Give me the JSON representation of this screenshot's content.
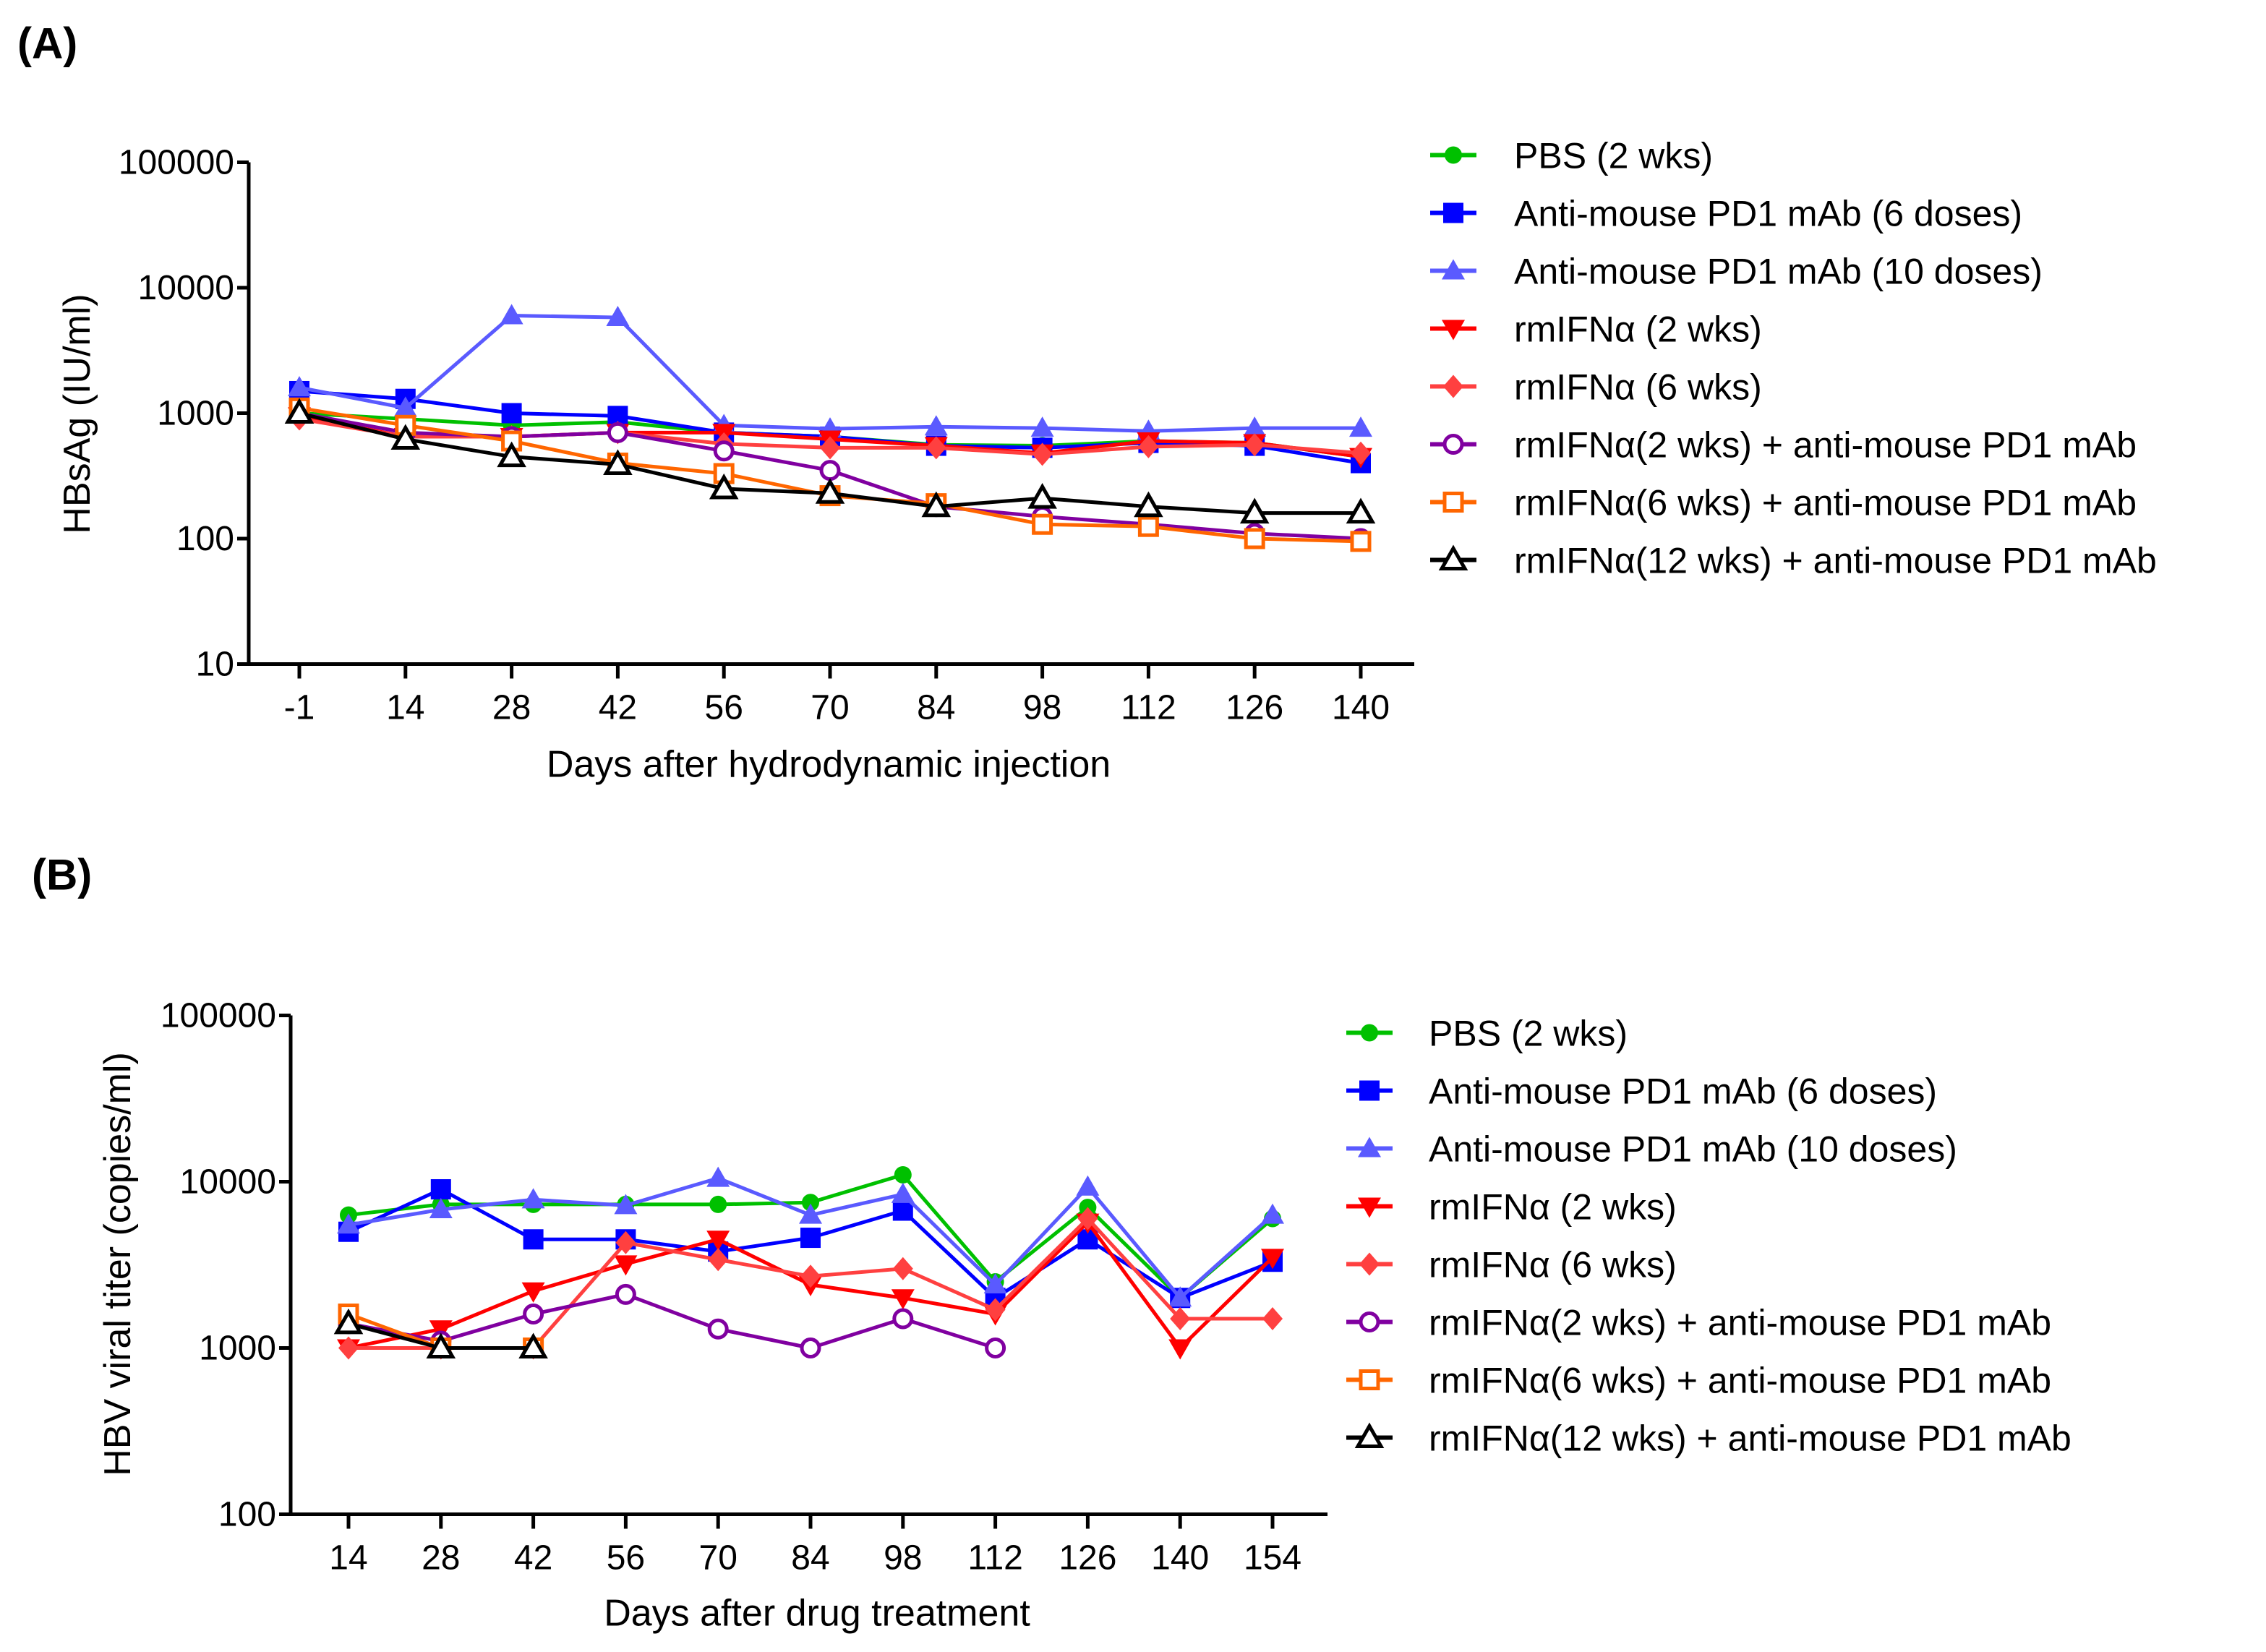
{
  "chart_data": [
    {
      "type": "line",
      "panel_label": "(A)",
      "xlabel": "Days after hydrodynamic injection",
      "ylabel": "HBsAg (IU/ml)",
      "yscale": "log",
      "ylim": [
        10,
        100000
      ],
      "yticks": [
        "10",
        "100",
        "1000",
        "10000",
        "100000"
      ],
      "categories": [
        "-1",
        "14",
        "28",
        "42",
        "56",
        "70",
        "84",
        "98",
        "112",
        "126",
        "140"
      ],
      "legend_position": "right",
      "grid": false,
      "series": [
        {
          "name": "PBS (2 wks)",
          "color": "#00c000",
          "marker": "circle",
          "values": [
            1000,
            900,
            800,
            850,
            700,
            650,
            560,
            550,
            600,
            580,
            450
          ]
        },
        {
          "name": "Anti-mouse PD1 mAb (6 doses)",
          "color": "#0000ff",
          "marker": "square",
          "values": [
            1500,
            1300,
            1000,
            950,
            700,
            650,
            550,
            530,
            580,
            550,
            400
          ]
        },
        {
          "name": "Anti-mouse PD1 mAb (10 doses)",
          "color": "#5a5aff",
          "marker": "triangle-up",
          "values": [
            1600,
            1100,
            6000,
            5800,
            800,
            750,
            780,
            760,
            720,
            760,
            760
          ]
        },
        {
          "name": "rmIFNα (2 wks)",
          "color": "#ff0000",
          "marker": "triangle-down",
          "values": [
            950,
            650,
            650,
            700,
            700,
            620,
            550,
            480,
            600,
            580,
            450
          ]
        },
        {
          "name": "rmIFNα (6 wks)",
          "color": "#ff4040",
          "marker": "diamond",
          "values": [
            900,
            650,
            650,
            700,
            570,
            530,
            530,
            470,
            540,
            560,
            480
          ]
        },
        {
          "name": "rmIFNα(2 wks) + anti-mouse PD1 mAb",
          "color": "#8000a0",
          "marker": "open-circle",
          "values": [
            1000,
            700,
            650,
            700,
            500,
            350,
            180,
            150,
            130,
            110,
            100
          ]
        },
        {
          "name": "rmIFNα(6 wks) + anti-mouse PD1 mAb",
          "color": "#ff6600",
          "marker": "open-square",
          "values": [
            1100,
            800,
            600,
            400,
            330,
            220,
            190,
            130,
            125,
            100,
            95
          ]
        },
        {
          "name": "rmIFNα(12 wks) + anti-mouse PD1 mAb",
          "color": "#000000",
          "marker": "open-triangle",
          "values": [
            1000,
            620,
            450,
            390,
            250,
            230,
            180,
            210,
            180,
            160,
            160
          ]
        }
      ]
    },
    {
      "type": "line",
      "panel_label": "(B)",
      "xlabel": "Days after drug treatment",
      "ylabel": "HBV viral titer (copies/ml)",
      "yscale": "log",
      "ylim": [
        100,
        100000
      ],
      "yticks": [
        "100",
        "1000",
        "10000",
        "100000"
      ],
      "categories": [
        "14",
        "28",
        "42",
        "56",
        "70",
        "84",
        "98",
        "112",
        "126",
        "140",
        "154"
      ],
      "legend_position": "right",
      "grid": false,
      "series": [
        {
          "name": "PBS (2 wks)",
          "color": "#00c000",
          "marker": "circle",
          "values": [
            6300,
            7300,
            7300,
            7300,
            7300,
            7500,
            11000,
            2500,
            7000,
            2000,
            6000
          ]
        },
        {
          "name": "Anti-mouse PD1 mAb (6 doses)",
          "color": "#0000ff",
          "marker": "square",
          "values": [
            5000,
            9000,
            4500,
            4500,
            3800,
            4600,
            6700,
            2000,
            4500,
            2000,
            3300
          ]
        },
        {
          "name": "Anti-mouse PD1 mAb (10 doses)",
          "color": "#5a5aff",
          "marker": "triangle-up",
          "values": [
            5500,
            6800,
            7800,
            7200,
            10500,
            6300,
            8400,
            2400,
            9300,
            2000,
            6300
          ]
        },
        {
          "name": "rmIFNα (2 wks)",
          "color": "#ff0000",
          "marker": "triangle-down",
          "values": [
            1000,
            1300,
            2200,
            3200,
            4500,
            2400,
            2000,
            1600,
            5700,
            1000,
            3500
          ]
        },
        {
          "name": "rmIFNα (6 wks)",
          "color": "#ff4040",
          "marker": "diamond",
          "values": [
            1000,
            1000,
            1000,
            4300,
            3400,
            2700,
            3000,
            1700,
            6000,
            1500,
            1500
          ]
        },
        {
          "name": "rmIFNα(2 wks) + anti-mouse PD1 mAb",
          "color": "#8000a0",
          "marker": "open-circle",
          "values": [
            1400,
            1100,
            1600,
            2100,
            1300,
            1000,
            1500,
            1000,
            null,
            null,
            null
          ]
        },
        {
          "name": "rmIFNα(6 wks) + anti-mouse PD1 mAb",
          "color": "#ff6600",
          "marker": "open-square",
          "values": [
            1600,
            1000,
            1000,
            null,
            null,
            null,
            null,
            null,
            null,
            null,
            null
          ]
        },
        {
          "name": "rmIFNα(12 wks) + anti-mouse PD1 mAb",
          "color": "#000000",
          "marker": "open-triangle",
          "values": [
            1400,
            1000,
            1000,
            null,
            null,
            null,
            null,
            null,
            null,
            null,
            null
          ]
        }
      ]
    }
  ]
}
